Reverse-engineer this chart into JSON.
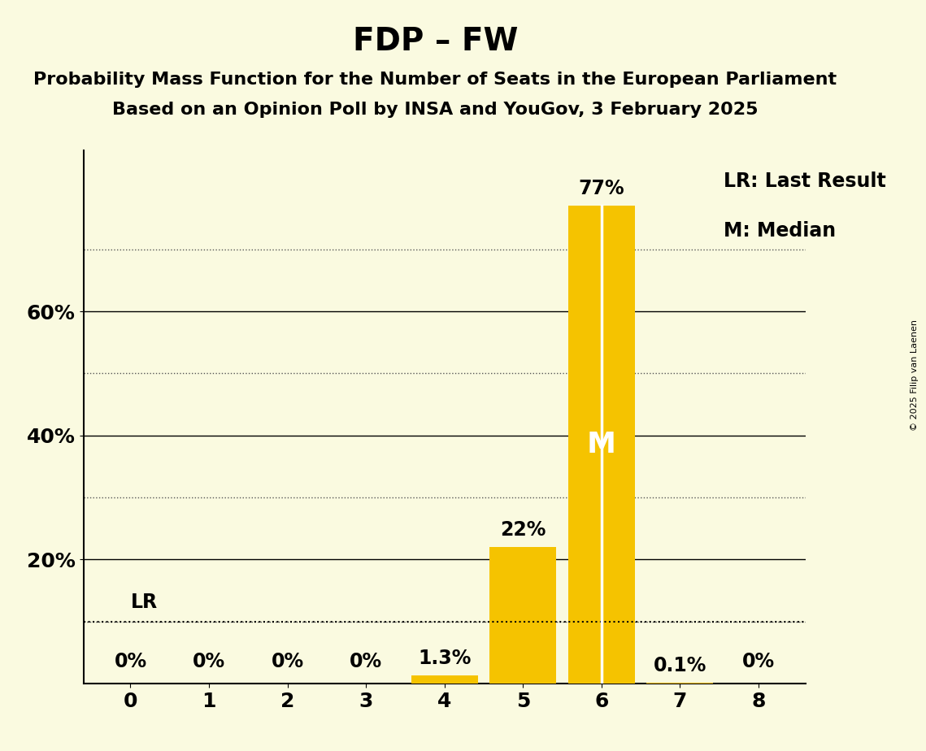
{
  "title": "FDP – FW",
  "subtitle1": "Probability Mass Function for the Number of Seats in the European Parliament",
  "subtitle2": "Based on an Opinion Poll by INSA and YouGov, 3 February 2025",
  "copyright": "© 2025 Filip van Laenen",
  "categories": [
    0,
    1,
    2,
    3,
    4,
    5,
    6,
    7,
    8
  ],
  "values": [
    0.0,
    0.0,
    0.0,
    0.0,
    1.3,
    22.0,
    77.0,
    0.1,
    0.0
  ],
  "bar_color": "#F5C300",
  "bar_labels": [
    "0%",
    "0%",
    "0%",
    "0%",
    "1.3%",
    "22%",
    "77%",
    "0.1%",
    "0%"
  ],
  "median_seat": 6,
  "last_result_seat": 0,
  "median_label": "M",
  "lr_label": "LR",
  "legend_lr": "LR: Last Result",
  "legend_m": "M: Median",
  "ylim": [
    0,
    86
  ],
  "yticks_solid": [
    20,
    40,
    60
  ],
  "ytick_labels_solid": [
    "20%",
    "40%",
    "60%"
  ],
  "yticks_dotted": [
    10,
    30,
    50,
    70
  ],
  "background_color": "#FAFAE0",
  "title_fontsize": 28,
  "subtitle_fontsize": 16,
  "axis_fontsize": 18,
  "bar_label_fontsize": 17,
  "legend_fontsize": 17,
  "solid_line_color": "#000000",
  "dotted_line_color": "#555555",
  "median_line_color": "#FFFFFF",
  "lr_line_value": 10,
  "lr_line_color": "#000000"
}
